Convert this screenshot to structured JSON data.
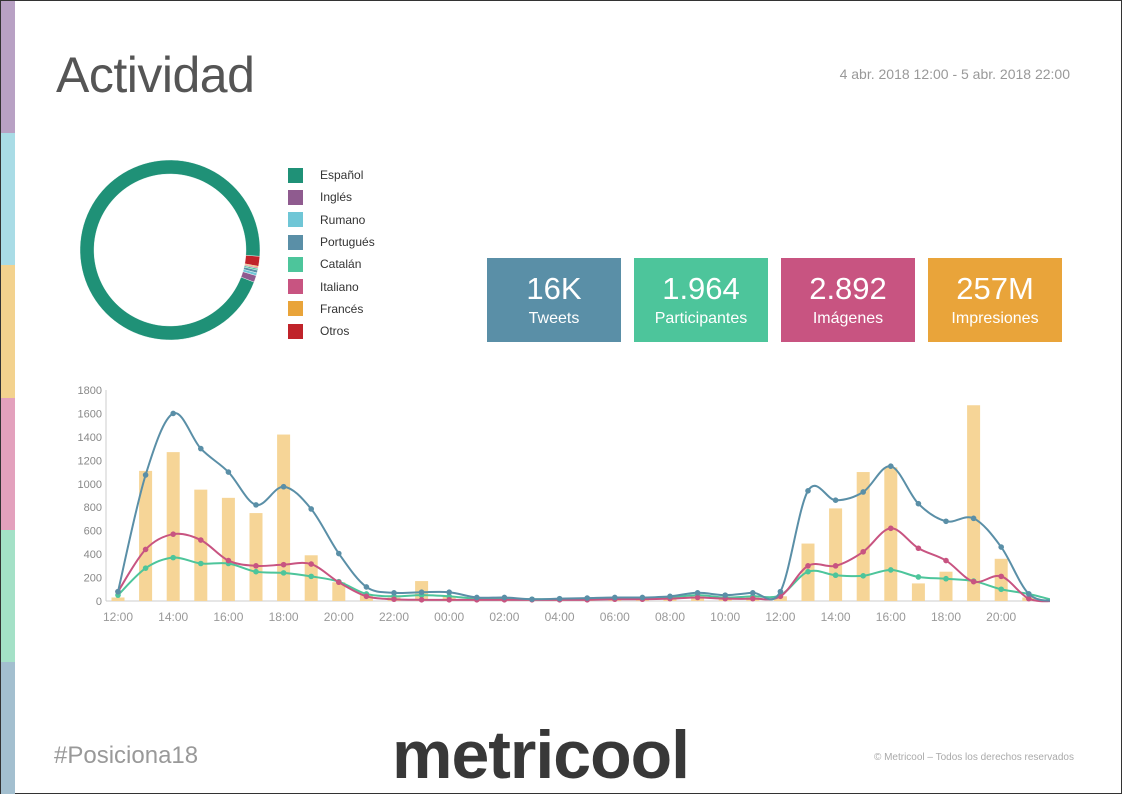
{
  "header": {
    "title": "Actividad",
    "date_range": "4 abr. 2018 12:00 - 5 abr. 2018 22:00"
  },
  "side_strip_colors": [
    "#b8a1c4",
    "#a9dce6",
    "#f3d28e",
    "#e3a1bd",
    "#a4e1c7",
    "#a3bfcf"
  ],
  "kpis": [
    {
      "value": "16K",
      "label": "Tweets",
      "color": "#5a8fa7"
    },
    {
      "value": "1.964",
      "label": "Participantes",
      "color": "#4dc59b"
    },
    {
      "value": "2.892",
      "label": "Imágenes",
      "color": "#c85481"
    },
    {
      "value": "257M",
      "label": "Impresiones",
      "color": "#e9a43a"
    }
  ],
  "footer": {
    "hashtag": "#Posiciona18",
    "brand": "metricool",
    "copyright": "© Metricool – Todos los derechos reservados"
  },
  "chart_data": [
    {
      "type": "pie",
      "title": "",
      "legend_position": "right",
      "slices": [
        {
          "label": "Español",
          "value": 95.3,
          "color": "#1f9177"
        },
        {
          "label": "Inglés",
          "value": 1.2,
          "color": "#8f5b8f"
        },
        {
          "label": "Rumano",
          "value": 0.5,
          "color": "#6fc6d6"
        },
        {
          "label": "Portugués",
          "value": 0.5,
          "color": "#5a8fa7"
        },
        {
          "label": "Catalán",
          "value": 0.3,
          "color": "#4dc59b"
        },
        {
          "label": "Italiano",
          "value": 0.2,
          "color": "#c85481"
        },
        {
          "label": "Francés",
          "value": 0.2,
          "color": "#e9a43a"
        },
        {
          "label": "Otros",
          "value": 1.8,
          "color": "#c0232a"
        }
      ]
    },
    {
      "type": "line",
      "title": "",
      "xlabel": "",
      "ylabel": "",
      "ylim": [
        0,
        1800
      ],
      "yticks": [
        0,
        200,
        400,
        600,
        800,
        1000,
        1200,
        1400,
        1600,
        1800
      ],
      "xticks": [
        "12:00",
        "14:00",
        "16:00",
        "18:00",
        "20:00",
        "22:00",
        "00:00",
        "02:00",
        "04:00",
        "06:00",
        "08:00",
        "10:00",
        "12:00",
        "14:00",
        "16:00",
        "18:00",
        "20:00"
      ],
      "grid": false,
      "legend": "none",
      "x_hours": [
        12,
        13,
        14,
        15,
        16,
        17,
        18,
        19,
        20,
        21,
        22,
        23,
        24,
        25,
        26,
        27,
        28,
        29,
        30,
        31,
        32,
        33,
        34,
        35,
        36,
        37,
        38,
        39,
        40,
        41,
        42,
        43,
        44,
        45,
        46
      ],
      "bars": {
        "color": "#f6d597",
        "values": [
          30,
          1110,
          1270,
          950,
          880,
          750,
          1420,
          390,
          160,
          50,
          30,
          170,
          40,
          20,
          15,
          10,
          10,
          15,
          20,
          25,
          30,
          40,
          30,
          30,
          40,
          490,
          790,
          1100,
          1140,
          150,
          250,
          1670,
          360,
          30,
          0
        ]
      },
      "series": [
        {
          "color": "#5a8fa7",
          "values": [
            80,
            1075,
            1600,
            1300,
            1100,
            820,
            975,
            785,
            405,
            120,
            70,
            75,
            75,
            30,
            30,
            15,
            20,
            25,
            30,
            30,
            40,
            70,
            50,
            70,
            80,
            940,
            860,
            930,
            1150,
            830,
            680,
            705,
            460,
            60,
            0
          ]
        },
        {
          "color": "#c85481",
          "values": [
            80,
            440,
            570,
            520,
            345,
            300,
            310,
            315,
            160,
            40,
            15,
            10,
            10,
            10,
            10,
            10,
            10,
            10,
            15,
            15,
            20,
            30,
            20,
            20,
            40,
            300,
            300,
            420,
            620,
            450,
            345,
            165,
            210,
            20,
            0
          ]
        },
        {
          "color": "#4dc59b",
          "values": [
            50,
            280,
            370,
            320,
            320,
            250,
            240,
            210,
            165,
            60,
            40,
            50,
            40,
            20,
            20,
            15,
            15,
            15,
            20,
            20,
            30,
            50,
            30,
            40,
            50,
            250,
            220,
            215,
            265,
            205,
            190,
            170,
            100,
            60,
            0
          ]
        }
      ]
    }
  ]
}
